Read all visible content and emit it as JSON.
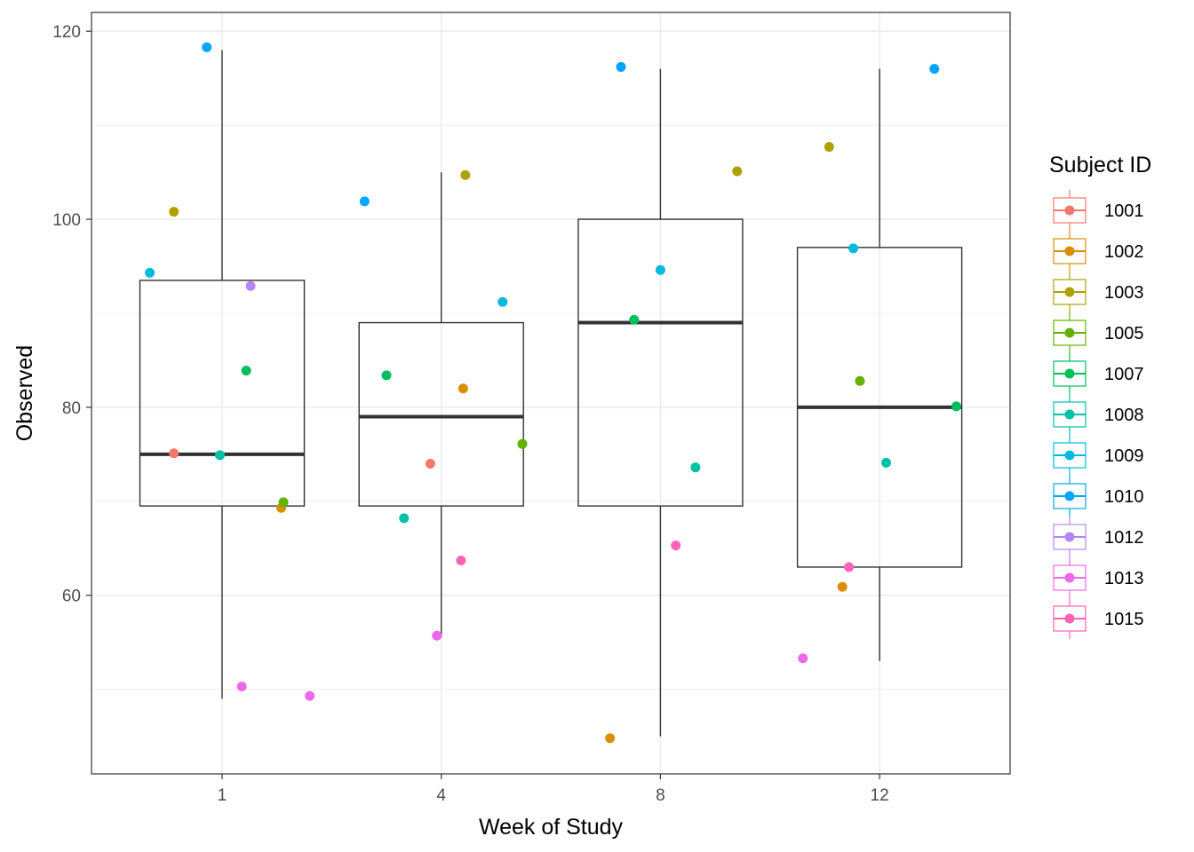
{
  "chart_data": {
    "type": "boxplot",
    "xlabel": "Week of Study",
    "ylabel": "Observed",
    "ylim": [
      41,
      122
    ],
    "yticks": [
      60,
      80,
      100,
      120
    ],
    "grid": true,
    "legend": {
      "title": "Subject ID",
      "placement": "right"
    },
    "categories": [
      "1",
      "4",
      "8",
      "12"
    ],
    "boxes": [
      {
        "category": "1",
        "whisker_low": 49.0,
        "q1": 69.5,
        "median": 75.0,
        "q3": 93.5,
        "whisker_high": 118.0
      },
      {
        "category": "4",
        "whisker_low": 55.5,
        "q1": 69.5,
        "median": 79.0,
        "q3": 89.0,
        "whisker_high": 105.0
      },
      {
        "category": "8",
        "whisker_low": 45.0,
        "q1": 69.5,
        "median": 89.0,
        "q3": 100.0,
        "whisker_high": 116.0
      },
      {
        "category": "12",
        "whisker_low": 53.0,
        "q1": 63.0,
        "median": 80.0,
        "q3": 97.0,
        "whisker_high": 116.0
      }
    ],
    "series": [
      {
        "name": "1001",
        "color": "#F8766D",
        "points": [
          {
            "x": "1",
            "y": 75.1,
            "jitter": -0.22
          },
          {
            "x": "4",
            "y": 74.0,
            "jitter": -0.05
          }
        ]
      },
      {
        "name": "1002",
        "color": "#DB8E00",
        "points": [
          {
            "x": "1",
            "y": 69.3,
            "jitter": 0.27
          },
          {
            "x": "4",
            "y": 82.0,
            "jitter": 0.1
          },
          {
            "x": "8",
            "y": 44.8,
            "jitter": -0.23
          },
          {
            "x": "12",
            "y": 60.9,
            "jitter": -0.17
          }
        ]
      },
      {
        "name": "1003",
        "color": "#AEA200",
        "points": [
          {
            "x": "1",
            "y": 100.8,
            "jitter": -0.22
          },
          {
            "x": "4",
            "y": 104.7,
            "jitter": 0.11
          },
          {
            "x": "8",
            "y": 105.1,
            "jitter": 0.35
          },
          {
            "x": "12",
            "y": 107.7,
            "jitter": -0.23
          }
        ]
      },
      {
        "name": "1005",
        "color": "#64B200",
        "points": [
          {
            "x": "1",
            "y": 69.9,
            "jitter": 0.28
          },
          {
            "x": "4",
            "y": 76.1,
            "jitter": 0.37
          },
          {
            "x": "12",
            "y": 82.8,
            "jitter": -0.09
          }
        ]
      },
      {
        "name": "1007",
        "color": "#00BD5C",
        "points": [
          {
            "x": "1",
            "y": 83.9,
            "jitter": 0.11
          },
          {
            "x": "4",
            "y": 83.4,
            "jitter": -0.25
          },
          {
            "x": "8",
            "y": 89.3,
            "jitter": -0.12
          },
          {
            "x": "12",
            "y": 80.1,
            "jitter": 0.35
          }
        ]
      },
      {
        "name": "1008",
        "color": "#00C1A7",
        "points": [
          {
            "x": "1",
            "y": 74.9,
            "jitter": -0.01
          },
          {
            "x": "4",
            "y": 68.2,
            "jitter": -0.17
          },
          {
            "x": "8",
            "y": 73.6,
            "jitter": 0.16
          },
          {
            "x": "12",
            "y": 74.1,
            "jitter": 0.03
          }
        ]
      },
      {
        "name": "1009",
        "color": "#00BADE",
        "points": [
          {
            "x": "1",
            "y": 94.3,
            "jitter": -0.33
          },
          {
            "x": "4",
            "y": 91.2,
            "jitter": 0.28
          },
          {
            "x": "8",
            "y": 94.6,
            "jitter": 0.0
          },
          {
            "x": "12",
            "y": 96.9,
            "jitter": -0.12
          }
        ]
      },
      {
        "name": "1010",
        "color": "#00A6FF",
        "points": [
          {
            "x": "1",
            "y": 118.3,
            "jitter": -0.07
          },
          {
            "x": "4",
            "y": 101.9,
            "jitter": -0.35
          },
          {
            "x": "8",
            "y": 116.2,
            "jitter": -0.18
          },
          {
            "x": "12",
            "y": 116.0,
            "jitter": 0.25
          }
        ]
      },
      {
        "name": "1012",
        "color": "#B385FF",
        "points": [
          {
            "x": "1",
            "y": 92.9,
            "jitter": 0.13
          }
        ]
      },
      {
        "name": "1013",
        "color": "#EF67EB",
        "points": [
          {
            "x": "1",
            "y": 50.3,
            "jitter": 0.09
          },
          {
            "x": "1",
            "y": 49.3,
            "jitter": 0.4
          },
          {
            "x": "4",
            "y": 55.7,
            "jitter": -0.02
          },
          {
            "x": "12",
            "y": 53.3,
            "jitter": -0.35
          }
        ]
      },
      {
        "name": "1015",
        "color": "#FF63B6",
        "points": [
          {
            "x": "4",
            "y": 63.7,
            "jitter": 0.09
          },
          {
            "x": "8",
            "y": 65.3,
            "jitter": 0.07
          },
          {
            "x": "12",
            "y": 63.0,
            "jitter": -0.14
          }
        ]
      }
    ]
  }
}
